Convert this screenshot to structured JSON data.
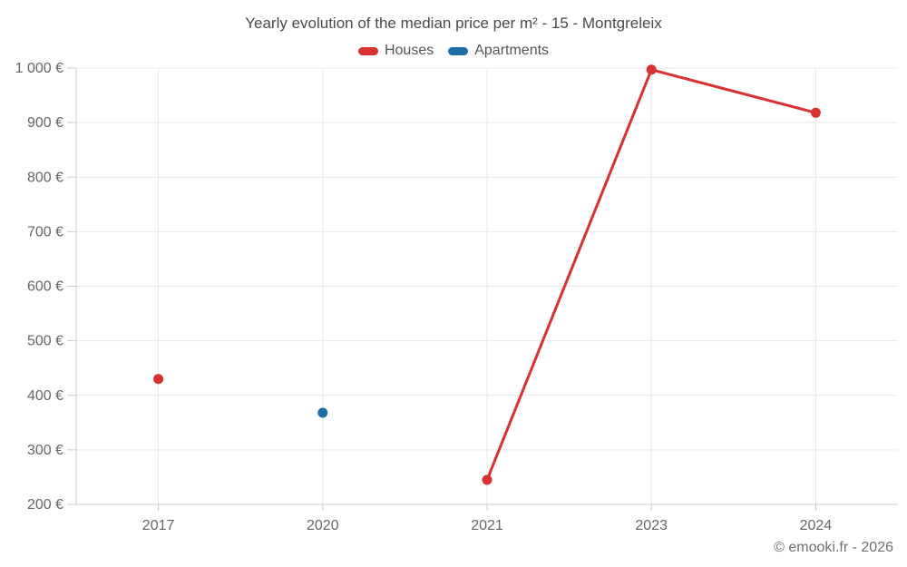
{
  "colors": {
    "background": "#ffffff",
    "houses": "#d93030",
    "apartments": "#1c6ea4",
    "grid": "#e9e9e9",
    "axis": "#cccccc",
    "title_text": "#4a4a4a",
    "tick_text": "#666666",
    "legend_text": "#545454",
    "footer_text": "#707070"
  },
  "footer": {
    "text": "© emooki.fr - 2026"
  },
  "chart_data": {
    "type": "line",
    "title": "Yearly evolution of the median price per m² - 15 - Montgreleix",
    "xlabel": "",
    "ylabel": "",
    "categories": [
      "2017",
      "2020",
      "2021",
      "2023",
      "2024"
    ],
    "series": [
      {
        "name": "Houses",
        "color": "#d93030",
        "values": [
          430,
          null,
          245,
          997,
          918
        ]
      },
      {
        "name": "Apartments",
        "color": "#1c6ea4",
        "values": [
          null,
          368,
          null,
          null,
          null
        ]
      }
    ],
    "ylim": [
      200,
      1000
    ],
    "yticks": [
      200,
      300,
      400,
      500,
      600,
      700,
      800,
      900,
      1000
    ],
    "ytick_labels": [
      "200 €",
      "300 €",
      "400 €",
      "500 €",
      "600 €",
      "700 €",
      "800 €",
      "900 €",
      "1 000 €"
    ],
    "currency": "€",
    "grid": true,
    "legend_position": "top",
    "marker_style": "circle",
    "line_gaps_note": "lines connect only adjacent categories with data; isolated points rendered as dots"
  }
}
